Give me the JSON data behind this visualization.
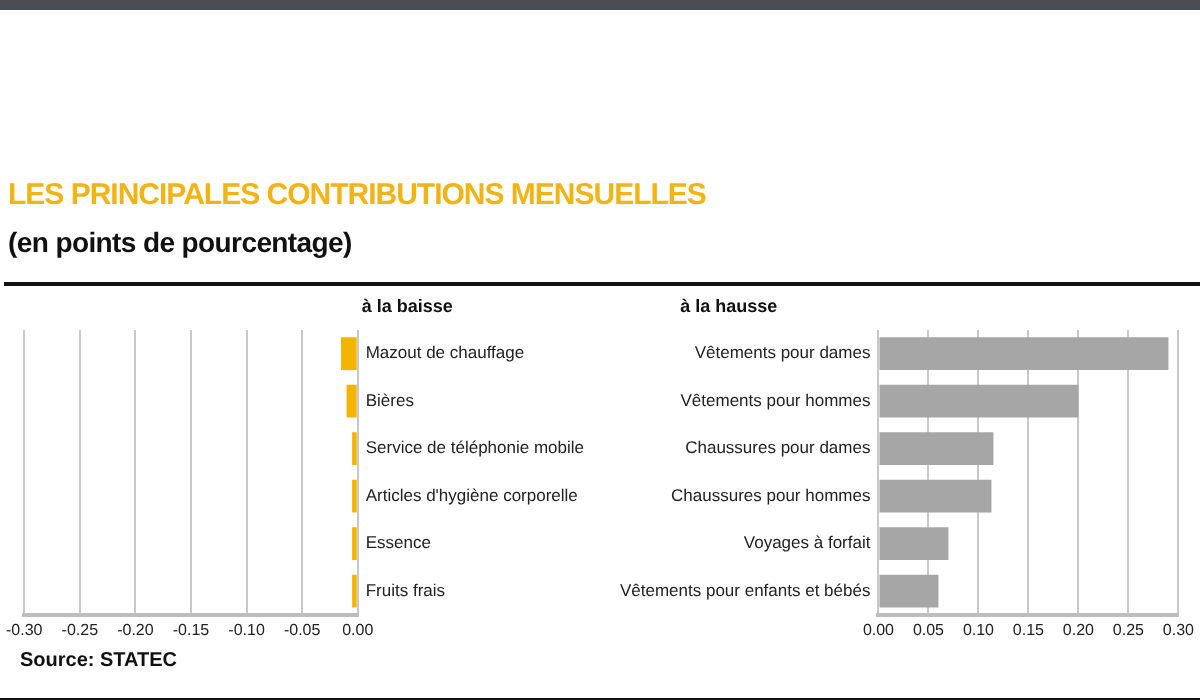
{
  "chart_data": [
    {
      "type": "bar",
      "orientation": "horizontal",
      "title": "LES PRINCIPALES CONTRIBUTIONS MENSUELLES",
      "subtitle": "(en points de pourcentage)",
      "ylabel": "à la baisse",
      "annotations": [
        "Source: STATEC"
      ],
      "categories": [
        "Mazout de chauffage",
        "Bières",
        "Service de téléphonie mobile",
        "Articles d'hygiène corporelle",
        "Essence",
        "Fruits frais"
      ],
      "values": [
        -0.015,
        -0.01,
        -0.005,
        -0.005,
        -0.005,
        -0.005
      ],
      "color": "#f5b400",
      "xlim": [
        -0.3,
        0
      ],
      "xticks": [
        {
          "value": -0.3,
          "label": "-0.30"
        },
        {
          "value": -0.25,
          "label": "-0.25"
        },
        {
          "value": -0.2,
          "label": "-0.20"
        },
        {
          "value": -0.15,
          "label": "-0.15"
        },
        {
          "value": -0.1,
          "label": "-0.10"
        },
        {
          "value": -0.05,
          "label": "-0.05"
        },
        {
          "value": 0,
          "label": "0.00"
        }
      ],
      "grid": "x"
    },
    {
      "type": "bar",
      "orientation": "horizontal",
      "ylabel": "à la hausse",
      "categories": [
        "Vêtements pour dames",
        "Vêtements pour hommes",
        "Chaussures pour dames",
        "Chaussures pour hommes",
        "Voyages à forfait",
        "Vêtements pour enfants et bébés"
      ],
      "values": [
        0.29,
        0.2,
        0.115,
        0.113,
        0.07,
        0.06
      ],
      "color": "#a6a6a6",
      "xlim": [
        0,
        0.3
      ],
      "xticks": [
        {
          "value": 0,
          "label": "0.00"
        },
        {
          "value": 0.05,
          "label": "0.05"
        },
        {
          "value": 0.1,
          "label": "0.10"
        },
        {
          "value": 0.15,
          "label": "0.15"
        },
        {
          "value": 0.2,
          "label": "0.20"
        },
        {
          "value": 0.25,
          "label": "0.25"
        },
        {
          "value": 0.3,
          "label": "0.30"
        }
      ],
      "grid": "x"
    }
  ]
}
